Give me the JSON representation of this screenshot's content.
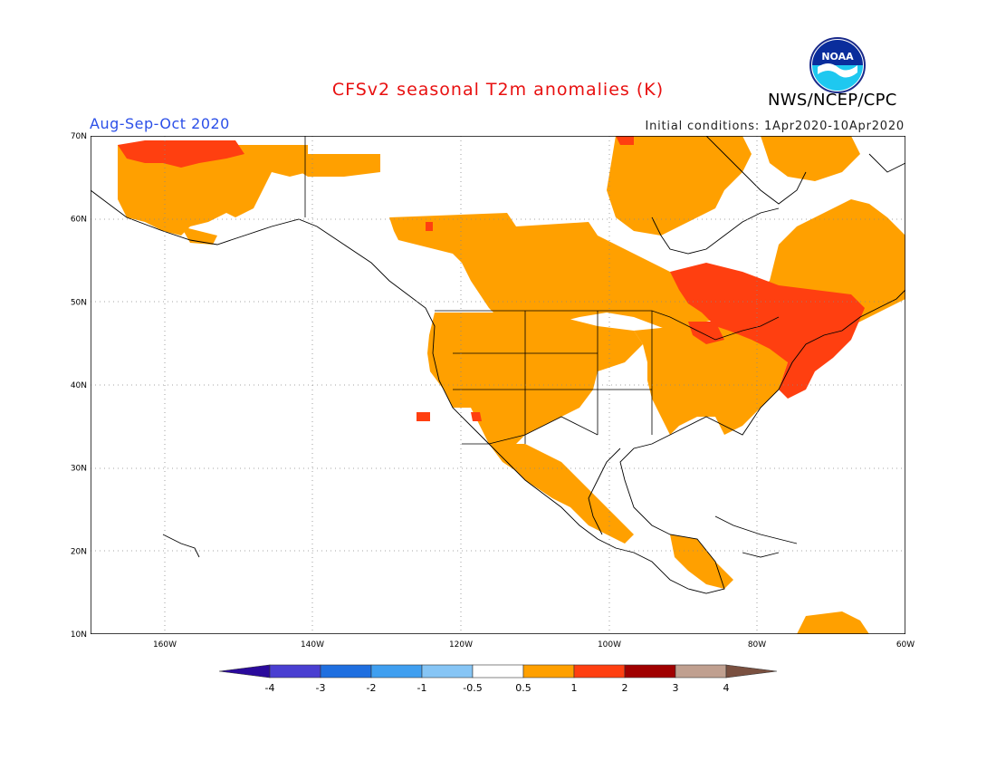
{
  "title": "CFSv2 seasonal T2m anomalies (K)",
  "season": "Aug-Sep-Oct 2020",
  "initial_conditions": "Initial conditions: 1Apr2020-10Apr2020",
  "agency": "NWS/NCEP/CPC",
  "logo_text": "NOAA",
  "map": {
    "lon_range": [
      -171,
      -60
    ],
    "lat_range": [
      10,
      70
    ],
    "lat_ticks": [
      "10N",
      "20N",
      "30N",
      "40N",
      "50N",
      "60N",
      "70N"
    ],
    "lon_ticks": [
      "160W",
      "140W",
      "120W",
      "100W",
      "80W",
      "60W"
    ],
    "grid": "dotted"
  },
  "legend": {
    "labels": [
      "-4",
      "-3",
      "-2",
      "-1",
      "-0.5",
      "0.5",
      "1",
      "2",
      "3",
      "4"
    ],
    "colors": [
      "#2a0a9c",
      "#4a3fd1",
      "#1f6fe0",
      "#3f9ff0",
      "#86c5f5",
      "#ffffff",
      "#ffa000",
      "#ff3f10",
      "#a00000",
      "#c0a090",
      "#7a5040"
    ]
  },
  "anomaly_colors": {
    "weak_warm": "#ffa000",
    "moderate_warm": "#ff3f10"
  }
}
